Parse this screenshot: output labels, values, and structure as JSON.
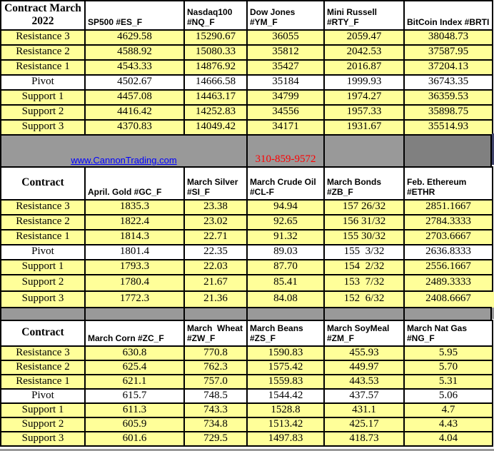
{
  "banner": {
    "link_text": "www.CannonTrading.com",
    "phone": "310-859-9572"
  },
  "pivot_label": "Pivot",
  "colors": {
    "yellow": "#FFFF99",
    "gray_band": "#999999",
    "gray_dark": "#808080",
    "border_black": "#000000",
    "link_blue": "#0000FF",
    "phone_red": "#FF0000",
    "navy_sliver": "#3E4168"
  },
  "sections": [
    {
      "contract_label": "Contract March 2022",
      "columns": [
        "SP500 #ES_F",
        "Nasdaq100\n#NQ_F",
        "Dow Jones\n#YM_F",
        "Mini Russell\n#RTY_F",
        "BitCoin Index #BRTI"
      ],
      "rows": [
        {
          "label": "Resistance 3",
          "values": [
            "4629.58",
            "15290.67",
            "36055",
            "2059.47",
            "38048.73"
          ]
        },
        {
          "label": "Resistance 2",
          "values": [
            "4588.92",
            "15080.33",
            "35812",
            "2042.53",
            "37587.95"
          ]
        },
        {
          "label": "Resistance 1",
          "values": [
            "4543.33",
            "14876.92",
            "35427",
            "2016.87",
            "37204.13"
          ]
        },
        {
          "label": "Pivot",
          "values": [
            "4502.67",
            "14666.58",
            "35184",
            "1999.93",
            "36743.35"
          ]
        },
        {
          "label": "Support 1",
          "values": [
            "4457.08",
            "14463.17",
            "34799",
            "1974.27",
            "36359.53"
          ]
        },
        {
          "label": "Support 2",
          "values": [
            "4416.42",
            "14252.83",
            "34556",
            "1957.33",
            "35898.75"
          ]
        },
        {
          "label": "Support 3",
          "values": [
            "4370.83",
            "14049.42",
            "34171",
            "1931.67",
            "35514.93"
          ]
        }
      ]
    },
    {
      "contract_label": "Contract",
      "columns": [
        "April. Gold #GC_F",
        "March Silver\n#SI_F",
        "March Crude Oil\n#CL-F",
        "March Bonds\n#ZB_F",
        "Feb. Ethereum\n#ETHR"
      ],
      "rows": [
        {
          "label": "Resistance 3",
          "values": [
            "1835.3",
            "23.38",
            "94.94",
            "157 26/32",
            "2851.1667"
          ]
        },
        {
          "label": "Resistance 2",
          "values": [
            "1822.4",
            "23.02",
            "92.65",
            "156 31/32",
            "2784.3333"
          ]
        },
        {
          "label": "Resistance 1",
          "values": [
            "1814.3",
            "22.71",
            "91.32",
            "155 30/32",
            "2703.6667"
          ]
        },
        {
          "label": "Pivot",
          "values": [
            "1801.4",
            "22.35",
            "89.03",
            "155  3/32",
            "2636.8333"
          ]
        },
        {
          "label": "Support 1",
          "values": [
            "1793.3",
            "22.03",
            "87.70",
            "154  2/32",
            "2556.1667"
          ]
        },
        {
          "label": "Support 2",
          "values": [
            "1780.4",
            "21.67",
            "85.41",
            "153  7/32",
            "2489.3333"
          ]
        },
        {
          "label": "Support 3",
          "values": [
            "1772.3",
            "21.36",
            "84.08",
            "152  6/32",
            "2408.6667"
          ]
        }
      ]
    },
    {
      "contract_label": "Contract",
      "columns": [
        "March Corn #ZC_F",
        "March  Wheat\n#ZW_F",
        "March Beans\n#ZS_F",
        "March SoyMeal\n#ZM_F",
        "March Nat Gas\n#NG_F"
      ],
      "rows": [
        {
          "label": "Resistance 3",
          "values": [
            "630.8",
            "770.8",
            "1590.83",
            "455.93",
            "5.95"
          ]
        },
        {
          "label": "Resistance 2",
          "values": [
            "625.4",
            "762.3",
            "1575.42",
            "449.97",
            "5.70"
          ]
        },
        {
          "label": "Resistance 1",
          "values": [
            "621.1",
            "757.0",
            "1559.83",
            "443.53",
            "5.31"
          ]
        },
        {
          "label": "Pivot",
          "values": [
            "615.7",
            "748.5",
            "1544.42",
            "437.57",
            "5.06"
          ]
        },
        {
          "label": "Support 1",
          "values": [
            "611.3",
            "743.3",
            "1528.8",
            "431.1",
            "4.7"
          ]
        },
        {
          "label": "Support 2",
          "values": [
            "605.9",
            "734.8",
            "1513.42",
            "425.17",
            "4.43"
          ]
        },
        {
          "label": "Support 3",
          "values": [
            "601.6",
            "729.5",
            "1497.83",
            "418.73",
            "4.04"
          ]
        }
      ]
    }
  ]
}
